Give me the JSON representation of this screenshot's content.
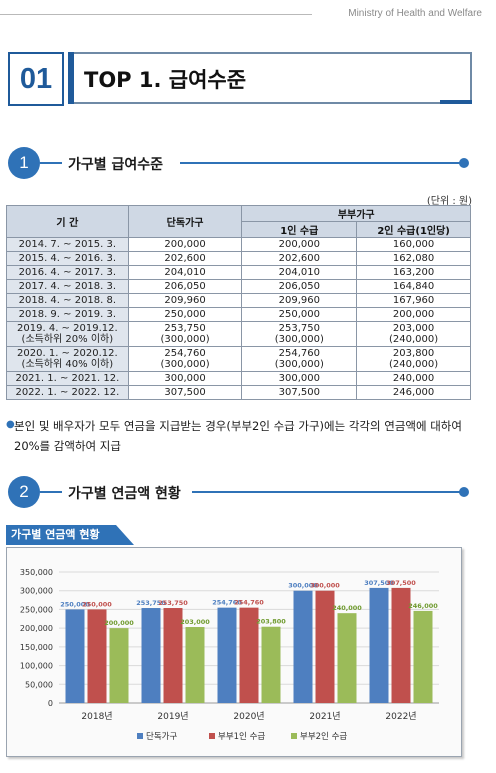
{
  "header": {
    "ministry": "Ministry of Health and Welfare"
  },
  "chapter": {
    "number": "01",
    "title": "TOP 1. 급여수준"
  },
  "section1": {
    "number": "1",
    "title": "가구별 급여수준"
  },
  "table": {
    "unit": "(단위 : 원)",
    "headers": {
      "period": "기 간",
      "single": "단독가구",
      "couple": "부부가구",
      "one": "1인 수급",
      "two": "2인 수급(1인당)"
    },
    "rows": [
      {
        "period": "2014. 7. ~ 2015. 3.",
        "single": "200,000",
        "one": "200,000",
        "two": "160,000"
      },
      {
        "period": "2015. 4. ~ 2016. 3.",
        "single": "202,600",
        "one": "202,600",
        "two": "162,080"
      },
      {
        "period": "2016. 4. ~ 2017. 3.",
        "single": "204,010",
        "one": "204,010",
        "two": "163,200"
      },
      {
        "period": "2017. 4. ~ 2018. 3.",
        "single": "206,050",
        "one": "206,050",
        "two": "164,840"
      },
      {
        "period": "2018. 4. ~ 2018. 8.",
        "single": "209,960",
        "one": "209,960",
        "two": "167,960"
      },
      {
        "period": "2018. 9. ~ 2019. 3.",
        "single": "250,000",
        "one": "250,000",
        "two": "200,000"
      },
      {
        "period": "2019. 4. ~ 2019.12.",
        "period_sub": "(소득하위 20% 이하)",
        "single": "253,750",
        "single_sub": "(300,000)",
        "one": "253,750",
        "one_sub": "(300,000)",
        "two": "203,000",
        "two_sub": "(240,000)"
      },
      {
        "period": "2020. 1. ~ 2020.12.",
        "period_sub": "(소득하위 40% 이하)",
        "single": "254,760",
        "single_sub": "(300,000)",
        "one": "254,760",
        "one_sub": "(300,000)",
        "two": "203,800",
        "two_sub": "(240,000)"
      },
      {
        "period": "2021. 1. ~ 2021. 12.",
        "single": "300,000",
        "one": "300,000",
        "two": "240,000"
      },
      {
        "period": "2022. 1. ~ 2022. 12.",
        "single": "307,500",
        "one": "307,500",
        "two": "246,000"
      }
    ]
  },
  "note": "본인 및 배우자가 모두 연금을 지급받는 경우(부부2인 수급 가구)에는 각각의 연금액에 대하여 20%를 감액하여 지급",
  "section2": {
    "number": "2",
    "title": "가구별 연금액 현황"
  },
  "chart_tab": "가구별 연금액 현황",
  "chart_data": {
    "type": "bar",
    "categories": [
      "2018년",
      "2019년",
      "2020년",
      "2021년",
      "2022년"
    ],
    "series": [
      {
        "name": "단독가구",
        "color": "#4e7fc0",
        "label_color": "#4e7fc0",
        "values": [
          250000,
          253750,
          254760,
          300000,
          307500
        ],
        "labels": [
          "250,000",
          "253,750",
          "254,760",
          "300,000",
          "307,500"
        ]
      },
      {
        "name": "부부1인 수급",
        "color": "#c0504d",
        "label_color": "#c0504d",
        "values": [
          250000,
          253750,
          254760,
          300000,
          307500
        ],
        "labels": [
          "250,000",
          "253,750",
          "254,760",
          "300,000",
          "307,500"
        ]
      },
      {
        "name": "부부2인 수급",
        "color": "#9bbb59",
        "label_color": "#6f9a2e",
        "values": [
          200000,
          203000,
          203800,
          240000,
          246000
        ],
        "labels": [
          "200,000",
          "203,000",
          "203,800",
          "240,000",
          "246,000"
        ]
      }
    ],
    "ylim": [
      0,
      350000
    ],
    "yticks": [
      0,
      50000,
      100000,
      150000,
      200000,
      250000,
      300000,
      350000
    ],
    "ytick_labels": [
      "0",
      "50,000",
      "100,000",
      "150,000",
      "200,000",
      "250,000",
      "300,000",
      "350,000"
    ],
    "grid": true,
    "legend": "bottom"
  }
}
